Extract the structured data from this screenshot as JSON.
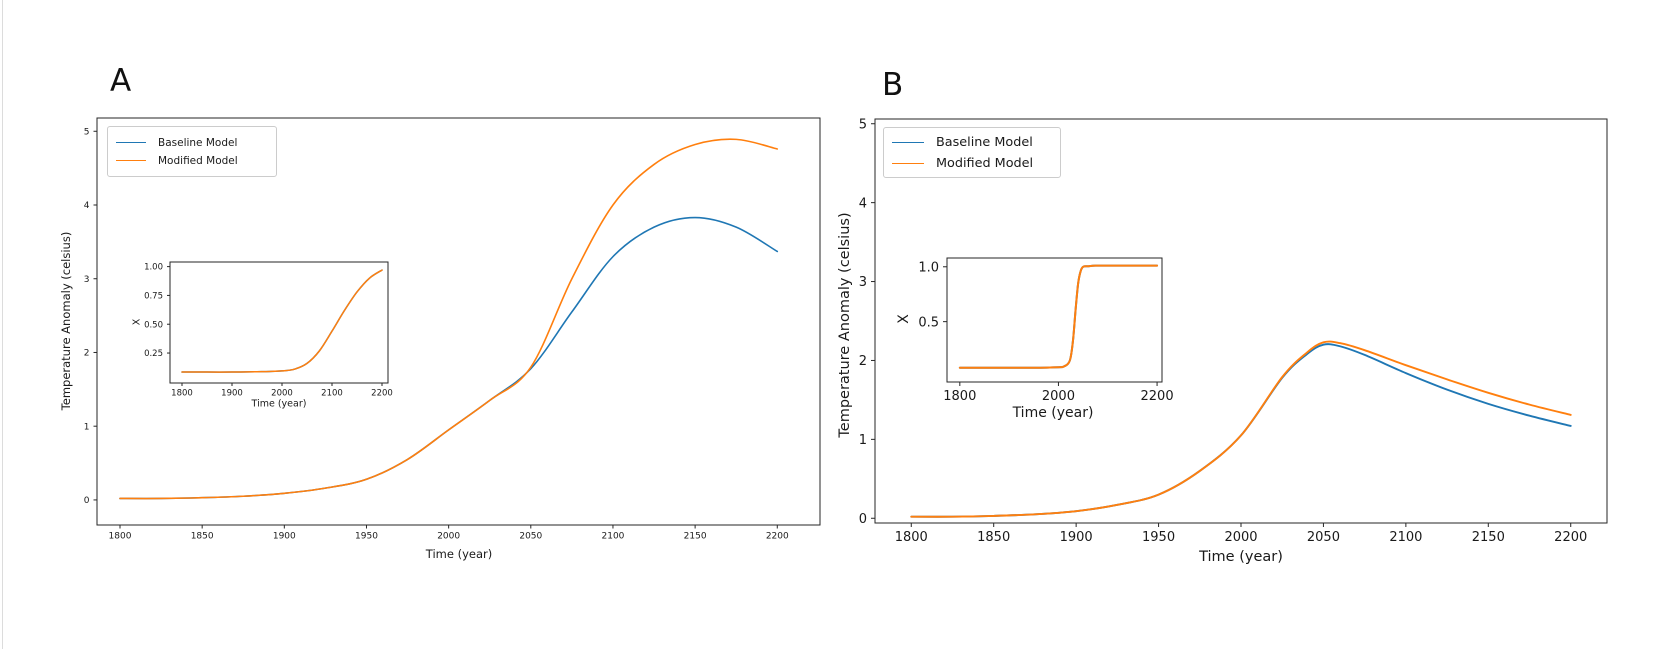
{
  "figure": {
    "background": "#ffffff",
    "spine_color": "#262626",
    "text_color": "#1a1a1a"
  },
  "chart_data": [
    {
      "id": "panel-a-main",
      "panel_label": "A",
      "type": "line",
      "xlabel": "Time (year)",
      "ylabel": "Temperature Anomaly (celsius)",
      "xlim": [
        1786,
        2226
      ],
      "ylim": [
        -0.34,
        5.18
      ],
      "grid": false,
      "legend": {
        "position": "upper left",
        "entries": [
          "Baseline Model",
          "Modified Model"
        ]
      },
      "xticks": [
        1800,
        1850,
        1900,
        1950,
        2000,
        2050,
        2100,
        2150,
        2200
      ],
      "xtick_labels": [
        "1800",
        "1850",
        "1900",
        "1950",
        "2000",
        "2050",
        "2100",
        "2150",
        "2200"
      ],
      "yticks": [
        0,
        1,
        2,
        3,
        4,
        5
      ],
      "ytick_labels": [
        "0",
        "1",
        "2",
        "3",
        "4",
        "5"
      ],
      "x": [
        1800,
        1825,
        1850,
        1875,
        1900,
        1925,
        1950,
        1975,
        2000,
        2025,
        2050,
        2075,
        2100,
        2125,
        2150,
        2175,
        2200
      ],
      "series": [
        {
          "name": "Baseline Model",
          "color": "#1f77b4",
          "values": [
            0.02,
            0.02,
            0.03,
            0.05,
            0.09,
            0.16,
            0.28,
            0.55,
            0.95,
            1.35,
            1.78,
            2.55,
            3.3,
            3.7,
            3.83,
            3.7,
            3.37
          ]
        },
        {
          "name": "Modified Model",
          "color": "#ff7f0e",
          "values": [
            0.02,
            0.02,
            0.03,
            0.05,
            0.09,
            0.16,
            0.28,
            0.55,
            0.95,
            1.35,
            1.8,
            3.0,
            4.0,
            4.55,
            4.82,
            4.89,
            4.76
          ]
        }
      ]
    },
    {
      "id": "panel-a-inset",
      "panel_label": "A",
      "type": "line",
      "xlabel": "Time (year)",
      "ylabel": "X",
      "xlim": [
        1776,
        2212
      ],
      "ylim": [
        -0.01,
        1.04
      ],
      "grid": false,
      "xticks": [
        1800,
        1900,
        2000,
        2100,
        2200
      ],
      "xtick_labels": [
        "1800",
        "1900",
        "2000",
        "2100",
        "2200"
      ],
      "yticks": [
        0.25,
        0.5,
        0.75,
        1.0
      ],
      "ytick_labels": [
        "0.25",
        "0.50",
        "0.75",
        "1.00"
      ],
      "x": [
        1800,
        1850,
        1900,
        1950,
        1975,
        2000,
        2025,
        2050,
        2075,
        2100,
        2125,
        2150,
        2175,
        2200
      ],
      "series": [
        {
          "name": "Baseline Model",
          "color": "#1f77b4",
          "values": [
            0.085,
            0.085,
            0.085,
            0.088,
            0.09,
            0.095,
            0.11,
            0.16,
            0.27,
            0.44,
            0.62,
            0.78,
            0.9,
            0.97
          ]
        },
        {
          "name": "Modified Model",
          "color": "#ff7f0e",
          "values": [
            0.085,
            0.085,
            0.085,
            0.088,
            0.09,
            0.095,
            0.11,
            0.16,
            0.27,
            0.44,
            0.62,
            0.78,
            0.9,
            0.97
          ]
        }
      ]
    },
    {
      "id": "panel-b-main",
      "panel_label": "B",
      "type": "line",
      "xlabel": "Time (year)",
      "ylabel": "Temperature Anomaly (celsius)",
      "xlim": [
        1778,
        2222
      ],
      "ylim": [
        -0.06,
        5.06
      ],
      "grid": false,
      "legend": {
        "position": "upper left",
        "entries": [
          "Baseline Model",
          "Modified Model"
        ]
      },
      "xticks": [
        1800,
        1850,
        1900,
        1950,
        2000,
        2050,
        2100,
        2150,
        2200
      ],
      "xtick_labels": [
        "1800",
        "1850",
        "1900",
        "1950",
        "2000",
        "2050",
        "2100",
        "2150",
        "2200"
      ],
      "yticks": [
        0,
        1,
        2,
        3,
        4,
        5
      ],
      "ytick_labels": [
        "0",
        "1",
        "2",
        "3",
        "4",
        "5"
      ],
      "x": [
        1800,
        1825,
        1850,
        1875,
        1900,
        1925,
        1950,
        1975,
        2000,
        2025,
        2040,
        2050,
        2060,
        2075,
        2100,
        2125,
        2150,
        2175,
        2200
      ],
      "series": [
        {
          "name": "Baseline Model",
          "color": "#1f77b4",
          "values": [
            0.02,
            0.02,
            0.03,
            0.05,
            0.09,
            0.17,
            0.3,
            0.6,
            1.05,
            1.78,
            2.08,
            2.2,
            2.18,
            2.07,
            1.84,
            1.63,
            1.45,
            1.3,
            1.17
          ]
        },
        {
          "name": "Modified Model",
          "color": "#ff7f0e",
          "values": [
            0.02,
            0.02,
            0.03,
            0.05,
            0.09,
            0.17,
            0.3,
            0.6,
            1.05,
            1.79,
            2.1,
            2.23,
            2.22,
            2.13,
            1.94,
            1.76,
            1.59,
            1.44,
            1.31
          ]
        }
      ]
    },
    {
      "id": "panel-b-inset",
      "panel_label": "B",
      "type": "line",
      "xlabel": "Time (year)",
      "ylabel": "X",
      "xlim": [
        1774,
        2210
      ],
      "ylim": [
        -0.05,
        1.08
      ],
      "grid": false,
      "xticks": [
        1800,
        2000,
        2200
      ],
      "xtick_labels": [
        "1800",
        "2000",
        "2200"
      ],
      "yticks": [
        0.5,
        1.0
      ],
      "ytick_labels": [
        "0.5",
        "1.0"
      ],
      "x": [
        1800,
        1900,
        1950,
        2000,
        2010,
        2020,
        2025,
        2030,
        2035,
        2040,
        2045,
        2050,
        2060,
        2075,
        2100,
        2150,
        2200
      ],
      "series": [
        {
          "name": "Baseline Model",
          "color": "#1f77b4",
          "values": [
            0.08,
            0.08,
            0.08,
            0.085,
            0.09,
            0.12,
            0.18,
            0.35,
            0.62,
            0.85,
            0.96,
            1.0,
            1.005,
            1.01,
            1.01,
            1.01,
            1.01
          ]
        },
        {
          "name": "Modified Model",
          "color": "#ff7f0e",
          "values": [
            0.08,
            0.08,
            0.08,
            0.085,
            0.09,
            0.12,
            0.18,
            0.35,
            0.62,
            0.85,
            0.96,
            1.0,
            1.005,
            1.01,
            1.01,
            1.01,
            1.01
          ]
        }
      ]
    }
  ]
}
